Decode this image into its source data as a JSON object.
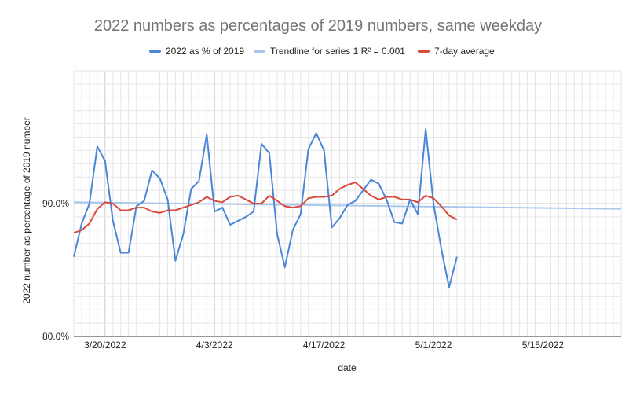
{
  "chart_data": {
    "type": "line",
    "title": "2022 numbers as percentages of 2019 numbers, same weekday",
    "xlabel": "date",
    "ylabel": "2022 number as percentage of 2019 number",
    "x_tick_labels": [
      "3/20/2022",
      "4/3/2022",
      "4/17/2022",
      "5/1/2022",
      "5/15/2022"
    ],
    "x_tick_dates": [
      "2022-03-20",
      "2022-04-03",
      "2022-04-17",
      "2022-05-01",
      "2022-05-15"
    ],
    "y_tick_labels": [
      "80.0%",
      "90.0%"
    ],
    "y_tick_values": [
      80,
      90
    ],
    "xlim": [
      "2022-03-16",
      "2022-05-25"
    ],
    "ylim": [
      80,
      100
    ],
    "grid": true,
    "legend_position": "top",
    "x": [
      "2022-03-16",
      "2022-03-17",
      "2022-03-18",
      "2022-03-19",
      "2022-03-20",
      "2022-03-21",
      "2022-03-22",
      "2022-03-23",
      "2022-03-24",
      "2022-03-25",
      "2022-03-26",
      "2022-03-27",
      "2022-03-28",
      "2022-03-29",
      "2022-03-30",
      "2022-03-31",
      "2022-04-01",
      "2022-04-02",
      "2022-04-03",
      "2022-04-04",
      "2022-04-05",
      "2022-04-06",
      "2022-04-07",
      "2022-04-08",
      "2022-04-09",
      "2022-04-10",
      "2022-04-11",
      "2022-04-12",
      "2022-04-13",
      "2022-04-14",
      "2022-04-15",
      "2022-04-16",
      "2022-04-17",
      "2022-04-18",
      "2022-04-19",
      "2022-04-20",
      "2022-04-21",
      "2022-04-22",
      "2022-04-23",
      "2022-04-24",
      "2022-04-25",
      "2022-04-26",
      "2022-04-27",
      "2022-04-28",
      "2022-04-29",
      "2022-04-30",
      "2022-05-01",
      "2022-05-02",
      "2022-05-03",
      "2022-05-04"
    ],
    "series": [
      {
        "name": "2022 as % of 2019",
        "color": "#4a86d8",
        "values": [
          86.0,
          88.5,
          90.0,
          94.3,
          93.2,
          88.7,
          86.3,
          86.3,
          89.8,
          90.2,
          92.5,
          91.9,
          90.3,
          85.7,
          87.7,
          91.1,
          91.7,
          95.2,
          89.4,
          89.7,
          88.4,
          88.7,
          89.0,
          89.4,
          94.5,
          93.8,
          87.7,
          85.2,
          88.0,
          89.2,
          94.1,
          95.3,
          94.0,
          88.2,
          88.9,
          89.9,
          90.2,
          91.0,
          91.8,
          91.5,
          90.3,
          88.6,
          88.5,
          90.3,
          89.2,
          95.6,
          90.0,
          86.6,
          83.7,
          86.0
        ]
      },
      {
        "name": "7-day average",
        "color": "#d84a3c",
        "values": [
          87.8,
          88.0,
          88.5,
          89.6,
          90.1,
          90.0,
          89.5,
          89.5,
          89.7,
          89.7,
          89.4,
          89.3,
          89.5,
          89.5,
          89.7,
          89.9,
          90.1,
          90.5,
          90.2,
          90.1,
          90.5,
          90.6,
          90.3,
          90.0,
          90.0,
          90.6,
          90.2,
          89.8,
          89.7,
          89.8,
          90.4,
          90.5,
          90.5,
          90.6,
          91.1,
          91.4,
          91.6,
          91.1,
          90.6,
          90.3,
          90.5,
          90.5,
          90.3,
          90.3,
          90.1,
          90.6,
          90.4,
          89.8,
          89.1,
          88.8
        ]
      }
    ],
    "trendline": {
      "name": "Trendline for series 1 R² = 0.001",
      "color": "#aac8ee",
      "y_start": 90.1,
      "y_end": 89.6
    }
  }
}
